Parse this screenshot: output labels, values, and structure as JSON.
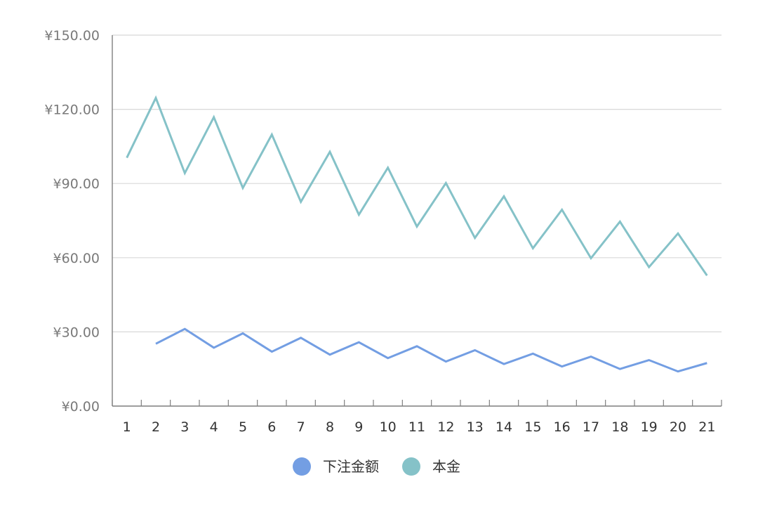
{
  "chart_data": {
    "type": "line",
    "x": [
      "1",
      "2",
      "3",
      "4",
      "5",
      "6",
      "7",
      "8",
      "9",
      "10",
      "11",
      "12",
      "13",
      "14",
      "15",
      "16",
      "17",
      "18",
      "19",
      "20",
      "21"
    ],
    "yticks": [
      "¥0.00",
      "¥30.00",
      "¥60.00",
      "¥90.00",
      "¥120.00",
      "¥150.00"
    ],
    "ylim": [
      0,
      150
    ],
    "grid": true,
    "legend_position": "bottom-center",
    "series": [
      {
        "name": "下注金额",
        "color": "#739ee3",
        "values": [
          null,
          25.2,
          31.2,
          23.6,
          29.4,
          22.0,
          27.6,
          20.8,
          25.8,
          19.4,
          24.2,
          18.0,
          22.6,
          17.0,
          21.2,
          16.0,
          20.0,
          15.0,
          18.6,
          14.0,
          17.4
        ]
      },
      {
        "name": "本金",
        "color": "#85c2c8",
        "values": [
          100.4,
          124.6,
          94.2,
          116.8,
          88.2,
          109.8,
          82.6,
          102.8,
          77.4,
          96.4,
          72.6,
          90.2,
          68.0,
          84.8,
          63.8,
          79.4,
          59.8,
          74.6,
          56.2,
          69.8,
          52.8
        ]
      }
    ]
  }
}
